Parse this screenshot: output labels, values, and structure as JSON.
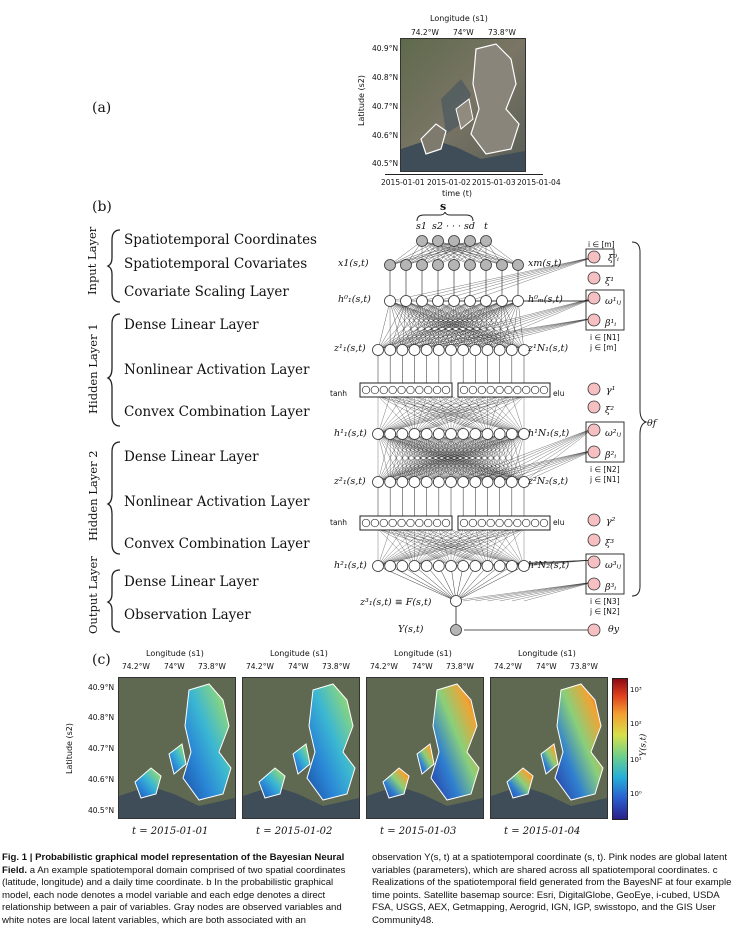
{
  "panels": {
    "a": "(a)",
    "b": "(b)",
    "c": "(c)"
  },
  "top_map": {
    "x_axis_title": "Longitude (s1)",
    "y_axis_title": "Latitude (s2)",
    "lon_ticks": [
      "74.2°W",
      "74°W",
      "73.8°W"
    ],
    "lat_ticks": [
      "40.9°N",
      "40.8°N",
      "40.7°N",
      "40.6°N",
      "40.5°N"
    ],
    "time_ticks": [
      "2015-01-01",
      "2015-01-02",
      "2015-01-03",
      "2015-01-04"
    ],
    "time_label": "time (t)"
  },
  "graph": {
    "groups": [
      "Input Layer",
      "Hidden Layer 1",
      "Hidden Layer 2",
      "Output Layer"
    ],
    "layers": [
      "Spatiotemporal Coordinates",
      "Spatiotemporal Covariates",
      "Covariate Scaling Layer",
      "Dense Linear Layer",
      "Nonlinear Activation Layer",
      "Convex Combination Layer",
      "Dense Linear Layer",
      "Nonlinear Activation Layer",
      "Convex Combination Layer",
      "Dense Linear Layer",
      "Observation Layer"
    ],
    "s_label": "s",
    "top_inputs": [
      "s1",
      "s2 · · · sd",
      "t"
    ],
    "row_labels": {
      "x1": "x1(s,t)",
      "xm": "xm(s,t)",
      "h0_1": "h⁰₁(s,t)",
      "h0_m": "h⁰ₘ(s,t)",
      "z1_1": "z¹₁(s,t)",
      "z1_N": "z¹N₁(s,t)",
      "h1_1": "h¹₁(s,t)",
      "h1_N": "h¹N₁(s,t)",
      "z2_1": "z²₁(s,t)",
      "z2_N": "z²N₂(s,t)",
      "h2_1": "h²₁(s,t)",
      "h2_N": "h²N₂(s,t)",
      "z3": "z³₁(s,t) ≡ F(s,t)",
      "y": "Y(s,t)"
    },
    "act_left": "tanh",
    "act_right": "elu",
    "params": {
      "im": "i ∈ [m]",
      "xi0": "ξ⁰ᵢ",
      "xi1": "ξ¹",
      "omega1": "ω¹ᵢⱼ",
      "beta1": "β¹ᵢ",
      "idx1": "i ∈ [N1]",
      "idx1b": "j ∈ [m]",
      "gamma1": "γ¹",
      "xi2": "ξ²",
      "omega2": "ω²ᵢⱼ",
      "beta2": "β²ᵢ",
      "idx2": "i ∈ [N2]",
      "idx2b": "j ∈ [N1]",
      "gamma2": "γ²",
      "xi3": "ξ³",
      "omega3": "ω³ᵢⱼ",
      "beta3": "β³ᵢ",
      "idx3": "i ∈ [N3]",
      "idx3b": "j ∈ [N2]",
      "theta_f": "θf",
      "theta_y": "θy"
    }
  },
  "bottom_maps": {
    "x_axis_title": "Longitude (s1)",
    "y_axis_title": "Latitude (s2)",
    "lon_ticks": [
      "74.2°W",
      "74°W",
      "73.8°W"
    ],
    "lat_ticks": [
      "40.9°N",
      "40.8°N",
      "40.7°N",
      "40.6°N",
      "40.5°N"
    ],
    "time_labels": [
      "t = 2015-01-01",
      "t = 2015-01-02",
      "t = 2015-01-03",
      "t = 2015-01-04"
    ],
    "colorbar_label": "Y(s,t)",
    "colorbar_ticks": [
      "10³",
      "10²",
      "10¹",
      "10⁰"
    ]
  },
  "caption": {
    "title": "Fig. 1 | Probabilistic graphical model representation of the Bayesian Neural Field.",
    "left_body": " a An example spatiotemporal domain comprised of two spatial coordinates (latitude, longitude) and a daily time coordinate. b In the probabilistic graphical model, each node denotes a model variable and each edge denotes a direct relationship between a pair of variables. Gray nodes are observed variables and white notes are local latent variables, which are both associated with an",
    "right_body": "observation Y(s, t) at a spatiotemporal coordinate (s, t). Pink nodes are global latent variables (parameters), which are shared across all spatiotemporal coordinates. c Realizations of the spatiotemporal field generated from the BayesNF at four example time points. Satellite basemap source: Esri, DigitalGlobe, GeoEye, i-cubed, USDA FSA, USGS, AEX, Getmapping, Aerogrid, IGN, IGP, swisstopo, and the GIS User Community48."
  }
}
